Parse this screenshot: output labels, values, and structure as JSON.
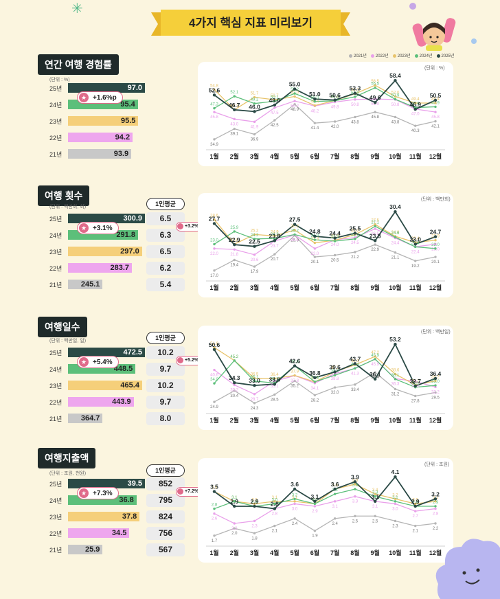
{
  "banner_title": "4가지 핵심 지표 미리보기",
  "legend": [
    {
      "label": "2021년",
      "color": "#b5b5b5"
    },
    {
      "label": "2022년",
      "color": "#e9a0ea"
    },
    {
      "label": "2023년",
      "color": "#e8c36a"
    },
    {
      "label": "2024년",
      "color": "#5cbf7a"
    },
    {
      "label": "2025년",
      "color": "#2b4a46"
    }
  ],
  "months": [
    "1월",
    "2월",
    "3월",
    "4월",
    "5월",
    "6월",
    "7월",
    "8월",
    "9월",
    "10월",
    "11월",
    "12월"
  ],
  "avg_header": "1인평균",
  "chart_data": [
    {
      "type": "bar",
      "title": "연간 여행 경험률",
      "unit": "(단위 : %)",
      "categories": [
        "25년",
        "24년",
        "23년",
        "22년",
        "21년"
      ],
      "values": [
        97.0,
        95.4,
        95.5,
        94.2,
        93.9
      ],
      "value_labels": [
        "97.0",
        "95.4",
        "95.5",
        "94.2",
        "93.9"
      ],
      "change_badge": "+1.6%p"
    },
    {
      "type": "line",
      "unit": "(단위 : %)",
      "x": [
        "1월",
        "2월",
        "3월",
        "4월",
        "5월",
        "6월",
        "7월",
        "8월",
        "9월",
        "10월",
        "11월",
        "12월"
      ],
      "series": [
        {
          "name": "2021년",
          "values": [
            34.9,
            39.1,
            36.9,
            42.5,
            48.9,
            41.4,
            42.0,
            43.8,
            45.8,
            43.8,
            40.3,
            42.1
          ]
        },
        {
          "name": "2022년",
          "values": [
            45.8,
            43.0,
            41.9,
            47.5,
            50.2,
            48.2,
            49.8,
            50.8,
            51.0,
            50.8,
            47.0,
            45.8
          ]
        },
        {
          "name": "2023년",
          "values": [
            54.8,
            46.7,
            51.7,
            50.7,
            52.0,
            48.4,
            50.4,
            53.1,
            56.5,
            52.0,
            49.4,
            49.4
          ]
        },
        {
          "name": "2024년",
          "values": [
            47.3,
            52.1,
            49.2,
            50.1,
            53.2,
            50.0,
            50.3,
            51.9,
            55.5,
            50.9,
            47.6,
            47.9
          ]
        },
        {
          "name": "2025년",
          "values": [
            52.6,
            46.7,
            46.0,
            48.6,
            55.0,
            51.0,
            50.6,
            53.3,
            49.6,
            58.4,
            46.9,
            50.5
          ]
        }
      ]
    },
    {
      "type": "bar",
      "title": "여행 횟수",
      "unit": "(단위 : 백만회, 회)",
      "categories": [
        "25년",
        "24년",
        "23년",
        "22년",
        "21년"
      ],
      "values": [
        300.9,
        291.8,
        297.0,
        283.7,
        245.1
      ],
      "value_labels": [
        "300.9",
        "291.8",
        "297.0",
        "283.7",
        "245.1"
      ],
      "avg_values": [
        "6.5",
        "6.3",
        "6.5",
        "6.2",
        "5.4"
      ],
      "change_badge": "+3.1%",
      "avg_change_badge": "+3.2%"
    },
    {
      "type": "line",
      "unit": "(단위 : 백만회)",
      "x": [
        "1월",
        "2월",
        "3월",
        "4월",
        "5월",
        "6월",
        "7월",
        "8월",
        "9월",
        "10월",
        "11월",
        "12월"
      ],
      "series": [
        {
          "name": "2021년",
          "values": [
            17.0,
            19.4,
            17.9,
            20.7,
            25.0,
            20.1,
            20.5,
            21.2,
            22.9,
            21.1,
            19.2,
            20.1
          ]
        },
        {
          "name": "2022년",
          "values": [
            22.0,
            21.8,
            20.6,
            23.7,
            25.1,
            22.0,
            24.0,
            24.5,
            26.5,
            24.4,
            22.4,
            23.0
          ]
        },
        {
          "name": "2023년",
          "values": [
            28.6,
            23.0,
            25.2,
            24.9,
            26.2,
            23.3,
            23.9,
            25.2,
            27.5,
            24.8,
            23.4,
            23.9
          ]
        },
        {
          "name": "2024년",
          "values": [
            23.0,
            25.9,
            24.2,
            24.3,
            25.2,
            24.0,
            23.7,
            24.2,
            27.1,
            24.6,
            22.4,
            22.0
          ]
        },
        {
          "name": "2025년",
          "values": [
            27.7,
            22.9,
            22.5,
            23.8,
            27.5,
            24.8,
            24.4,
            25.5,
            23.8,
            30.4,
            23.0,
            24.7
          ]
        }
      ]
    },
    {
      "type": "bar",
      "title": "여행일수",
      "unit": "(단위 : 백만일, 일)",
      "categories": [
        "25년",
        "24년",
        "23년",
        "22년",
        "21년"
      ],
      "values": [
        472.5,
        448.5,
        465.4,
        443.9,
        364.7
      ],
      "value_labels": [
        "472.5",
        "448.5",
        "465.4",
        "443.9",
        "364.7"
      ],
      "avg_values": [
        "10.2",
        "9.7",
        "10.2",
        "9.7",
        "8.0"
      ],
      "change_badge": "+5.4%",
      "avg_change_badge": "+5.2%"
    },
    {
      "type": "line",
      "unit": "(단위 : 백만일)",
      "x": [
        "1월",
        "2월",
        "3월",
        "4월",
        "5월",
        "6월",
        "7월",
        "8월",
        "9월",
        "10월",
        "11월",
        "12월"
      ],
      "series": [
        {
          "name": "2021년",
          "values": [
            24.9,
            30.4,
            24.3,
            28.5,
            35.2,
            28.2,
            32.0,
            33.4,
            39.4,
            31.2,
            27.8,
            29.5
          ]
        },
        {
          "name": "2022년",
          "values": [
            40.6,
            33.2,
            28.7,
            35.1,
            37.8,
            34.1,
            38.8,
            41.3,
            45.9,
            36.3,
            35.0,
            32.2
          ]
        },
        {
          "name": "2023년",
          "values": [
            51.6,
            45.2,
            36.5,
            36.4,
            37.9,
            34.7,
            39.7,
            43.1,
            47.2,
            38.6,
            33.2,
            35.2
          ]
        },
        {
          "name": "2024년",
          "values": [
            34.0,
            45.2,
            35.1,
            34.2,
            42.6,
            34.8,
            38.0,
            41.4,
            45.9,
            36.1,
            32.1,
            33.0
          ]
        },
        {
          "name": "2025년",
          "values": [
            50.6,
            34.3,
            33.0,
            33.6,
            42.6,
            36.8,
            39.6,
            43.7,
            36.1,
            53.2,
            32.7,
            36.4
          ]
        }
      ]
    },
    {
      "type": "bar",
      "title": "여행지출액",
      "unit": "(단위 : 조원, 천원)",
      "categories": [
        "25년",
        "24년",
        "23년",
        "22년",
        "21년"
      ],
      "values": [
        39.5,
        36.8,
        37.8,
        34.5,
        25.9
      ],
      "value_labels": [
        "39.5",
        "36.8",
        "37.8",
        "34.5",
        "25.9"
      ],
      "avg_values": [
        "852",
        "795",
        "824",
        "756",
        "567"
      ],
      "change_badge": "+7.3%",
      "avg_change_badge": "+7.2%"
    },
    {
      "type": "line",
      "unit": "(단위 : 조원)",
      "x": [
        "1월",
        "2월",
        "3월",
        "4월",
        "5월",
        "6월",
        "7월",
        "8월",
        "9월",
        "10월",
        "11월",
        "12월"
      ],
      "series": [
        {
          "name": "2021년",
          "values": [
            1.7,
            2.0,
            1.8,
            2.1,
            2.4,
            1.9,
            2.4,
            2.5,
            2.5,
            2.3,
            2.1,
            2.2
          ]
        },
        {
          "name": "2022년",
          "values": [
            2.6,
            2.2,
            2.3,
            2.8,
            3.0,
            2.9,
            3.1,
            3.3,
            3.1,
            3.0,
            2.7,
            2.8
          ]
        },
        {
          "name": "2023년",
          "values": [
            3.5,
            3.1,
            3.0,
            3.1,
            3.1,
            3.0,
            3.6,
            3.8,
            3.4,
            3.2,
            3.0,
            3.1
          ]
        },
        {
          "name": "2024년",
          "values": [
            2.8,
            3.1,
            2.9,
            3.0,
            3.2,
            3.0,
            3.4,
            3.6,
            3.3,
            3.1,
            2.9,
            2.9
          ]
        },
        {
          "name": "2025년",
          "values": [
            3.5,
            2.9,
            2.9,
            2.8,
            3.6,
            3.1,
            3.6,
            3.9,
            3.1,
            4.1,
            2.9,
            3.2
          ]
        }
      ]
    }
  ]
}
